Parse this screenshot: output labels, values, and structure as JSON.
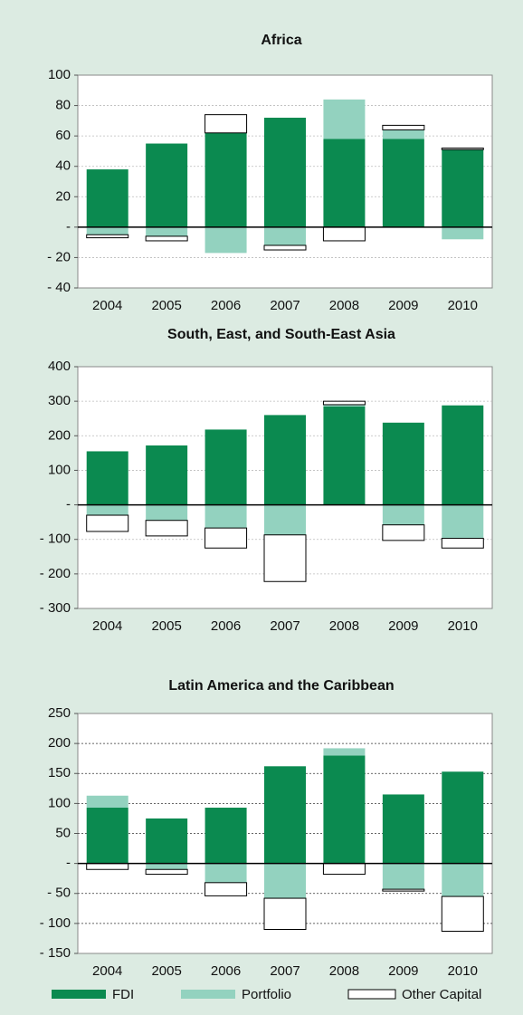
{
  "chart_data": [
    {
      "type": "stacked_bar",
      "title": "Africa",
      "categories": [
        "2004",
        "2005",
        "2006",
        "2007",
        "2008",
        "2009",
        "2010"
      ],
      "series": [
        {
          "name": "FDI",
          "color": "#0b8a50",
          "values": [
            38,
            55,
            62,
            72,
            58,
            58,
            51
          ]
        },
        {
          "name": "Portfolio",
          "color": "#93d2bf",
          "values": [
            -5,
            -6,
            -17,
            -12,
            26,
            6,
            -8
          ]
        },
        {
          "name": "Other Capital",
          "color": "#ffffff",
          "values": [
            -2,
            -3,
            12,
            -3,
            -9,
            3,
            1
          ]
        }
      ],
      "ylim": [
        -40,
        100
      ],
      "yticks": [
        {
          "value": -40,
          "label": "- 40"
        },
        {
          "value": -20,
          "label": "- 20"
        },
        {
          "value": 0,
          "label": "-"
        },
        20,
        40,
        60,
        80,
        100
      ],
      "grid": true
    },
    {
      "type": "stacked_bar",
      "title": "South, East, and South-East Asia",
      "categories": [
        "2004",
        "2005",
        "2006",
        "2007",
        "2008",
        "2009",
        "2010"
      ],
      "series": [
        {
          "color": "#0b8a50",
          "values": [
            155,
            172,
            218,
            260,
            285,
            238,
            288
          ]
        },
        {
          "color": "#93d2bf",
          "values": [
            -30,
            -45,
            -67,
            -87,
            5,
            -58,
            -97
          ]
        },
        {
          "color": "#ffffff",
          "values": [
            -47,
            -45,
            -58,
            -135,
            10,
            -45,
            -28
          ]
        }
      ],
      "ylim": [
        -300,
        400
      ],
      "yticks": [
        {
          "value": -300,
          "label": "- 300"
        },
        {
          "value": -200,
          "label": "- 200"
        },
        {
          "value": -100,
          "label": "- 100"
        },
        {
          "value": 0,
          "label": "-"
        },
        100,
        200,
        300,
        400
      ],
      "grid": true
    },
    {
      "type": "stacked_bar",
      "title": "Latin America and the Caribbean",
      "categories": [
        "2004",
        "2005",
        "2006",
        "2007",
        "2008",
        "2009",
        "2010"
      ],
      "series": [
        {
          "color": "#0b8a50",
          "values": [
            93,
            75,
            93,
            162,
            180,
            115,
            153
          ]
        },
        {
          "color": "#93d2bf",
          "values": [
            20,
            -10,
            -32,
            -58,
            12,
            -43,
            -55
          ]
        },
        {
          "color": "#ffffff",
          "values": [
            -10,
            -8,
            -22,
            -52,
            -18,
            -3,
            -58
          ]
        }
      ],
      "ylim": [
        -150,
        250
      ],
      "yticks": [
        {
          "value": -150,
          "label": "- 150"
        },
        {
          "value": -100,
          "label": "- 100"
        },
        {
          "value": -50,
          "label": "- 50"
        },
        {
          "value": 0,
          "label": "-"
        },
        50,
        100,
        150,
        200,
        250
      ],
      "grid": true
    }
  ]
}
